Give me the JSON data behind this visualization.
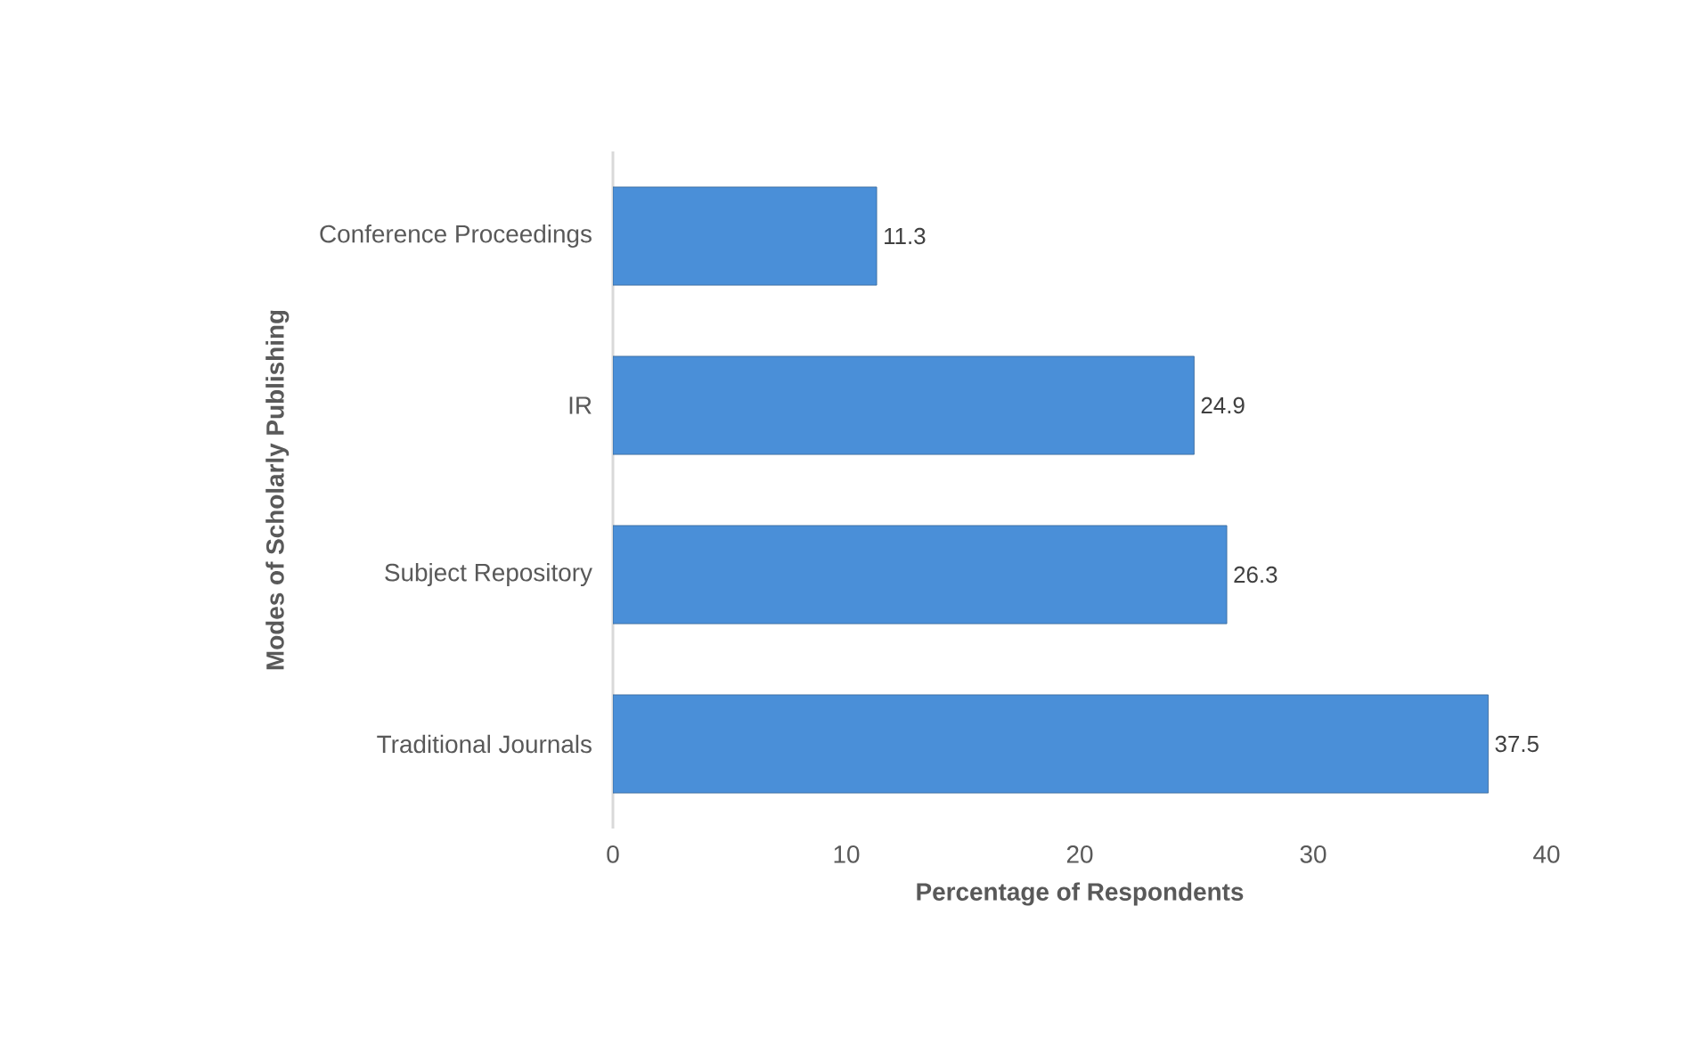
{
  "chart_data": {
    "type": "bar",
    "orientation": "horizontal",
    "categories": [
      "Conference Proceedings",
      "IR",
      "Subject Repository",
      "Traditional Journals"
    ],
    "values": [
      11.3,
      24.9,
      26.3,
      37.5
    ],
    "color": "#4a8fd8",
    "data_labels": true,
    "xlim": [
      0,
      40
    ],
    "xticks": [
      0,
      10,
      20,
      30,
      40
    ],
    "xlabel": "Percentage of Respondents",
    "ylabel": "Modes of Scholarly Publishing"
  }
}
